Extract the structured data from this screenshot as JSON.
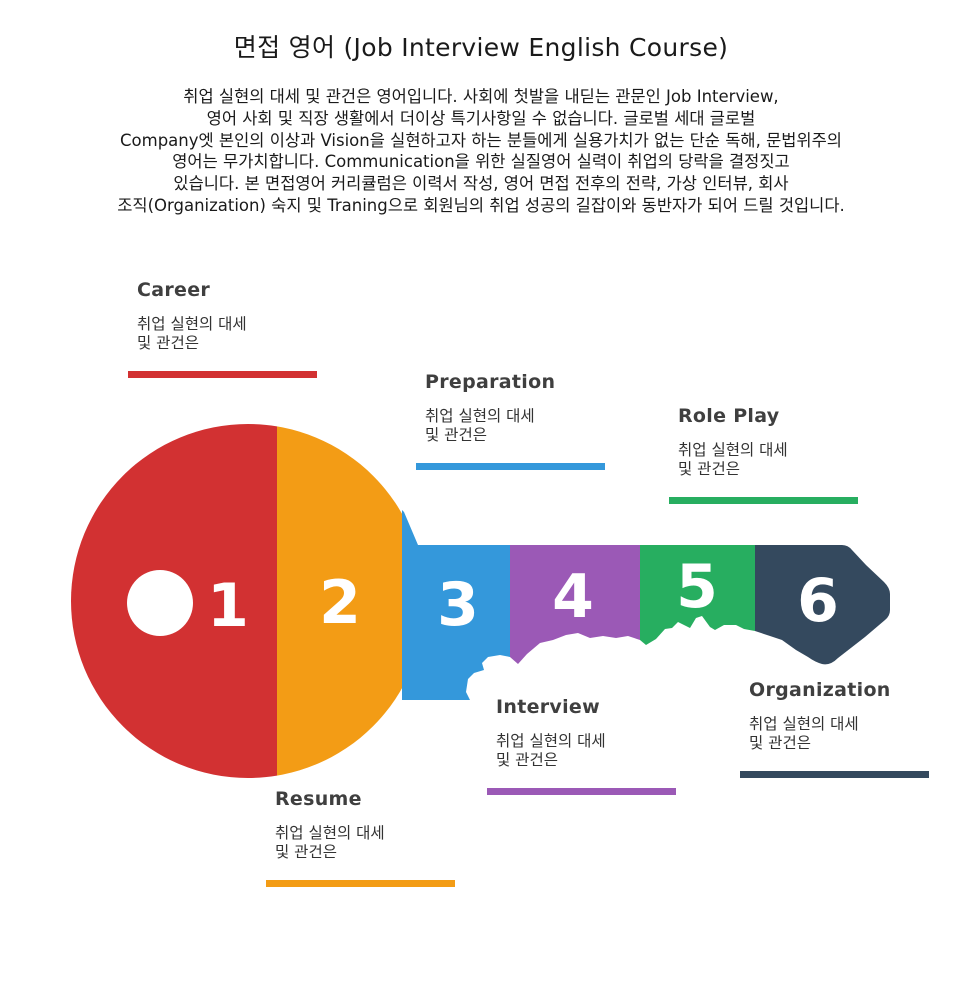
{
  "header": {
    "title": "면접 영어 (Job Interview English Course)",
    "intro": "취업 실현의 대세 및 관건은 영어입니다. 사회에 첫발을 내딛는 관문인 Job Interview,\n영어 사회 및 직장 생활에서 더이상 특기사항일 수 없습니다. 글로벌 세대 글로벌\nCompany엣 본인의 이상과 Vision을 실현하고자 하는 분들에게 실용가치가 없는 단순 독해, 문법위주의\n영어는 무가치합니다. Communication을 위한 실질영어 실력이 취업의 당락을 결정짓고\n있습니다. 본 면접영어 커리큘럼은 이력서 작성, 영어 면접 전후의 전략, 가상 인터뷰, 회사\n조직(Organization) 숙지 및 Traning으로 회원님의 취업 성공의 길잡이와 동반자가 되어 드릴 것입니다."
  },
  "key": {
    "segments": [
      {
        "number": "1",
        "color": "#d23132"
      },
      {
        "number": "2",
        "color": "#f39c15"
      },
      {
        "number": "3",
        "color": "#3498db"
      },
      {
        "number": "4",
        "color": "#9b59b6"
      },
      {
        "number": "5",
        "color": "#27ae60"
      },
      {
        "number": "6",
        "color": "#34495e"
      }
    ]
  },
  "steps": [
    {
      "title": "Career",
      "desc": "취업 실현의 대세\n및 관건은",
      "color": "#d23132"
    },
    {
      "title": "Resume",
      "desc": "취업 실현의 대세\n및 관건은",
      "color": "#f39c15"
    },
    {
      "title": "Preparation",
      "desc": "취업 실현의 대세\n및 관건은",
      "color": "#3498db"
    },
    {
      "title": "Interview",
      "desc": "취업 실현의 대세\n및 관건은",
      "color": "#9b59b6"
    },
    {
      "title": "Role Play",
      "desc": "취업 실현의 대세\n및 관건은",
      "color": "#27ae60"
    },
    {
      "title": "Organization",
      "desc": "취업 실현의 대세\n및 관건은",
      "color": "#34495e"
    }
  ]
}
